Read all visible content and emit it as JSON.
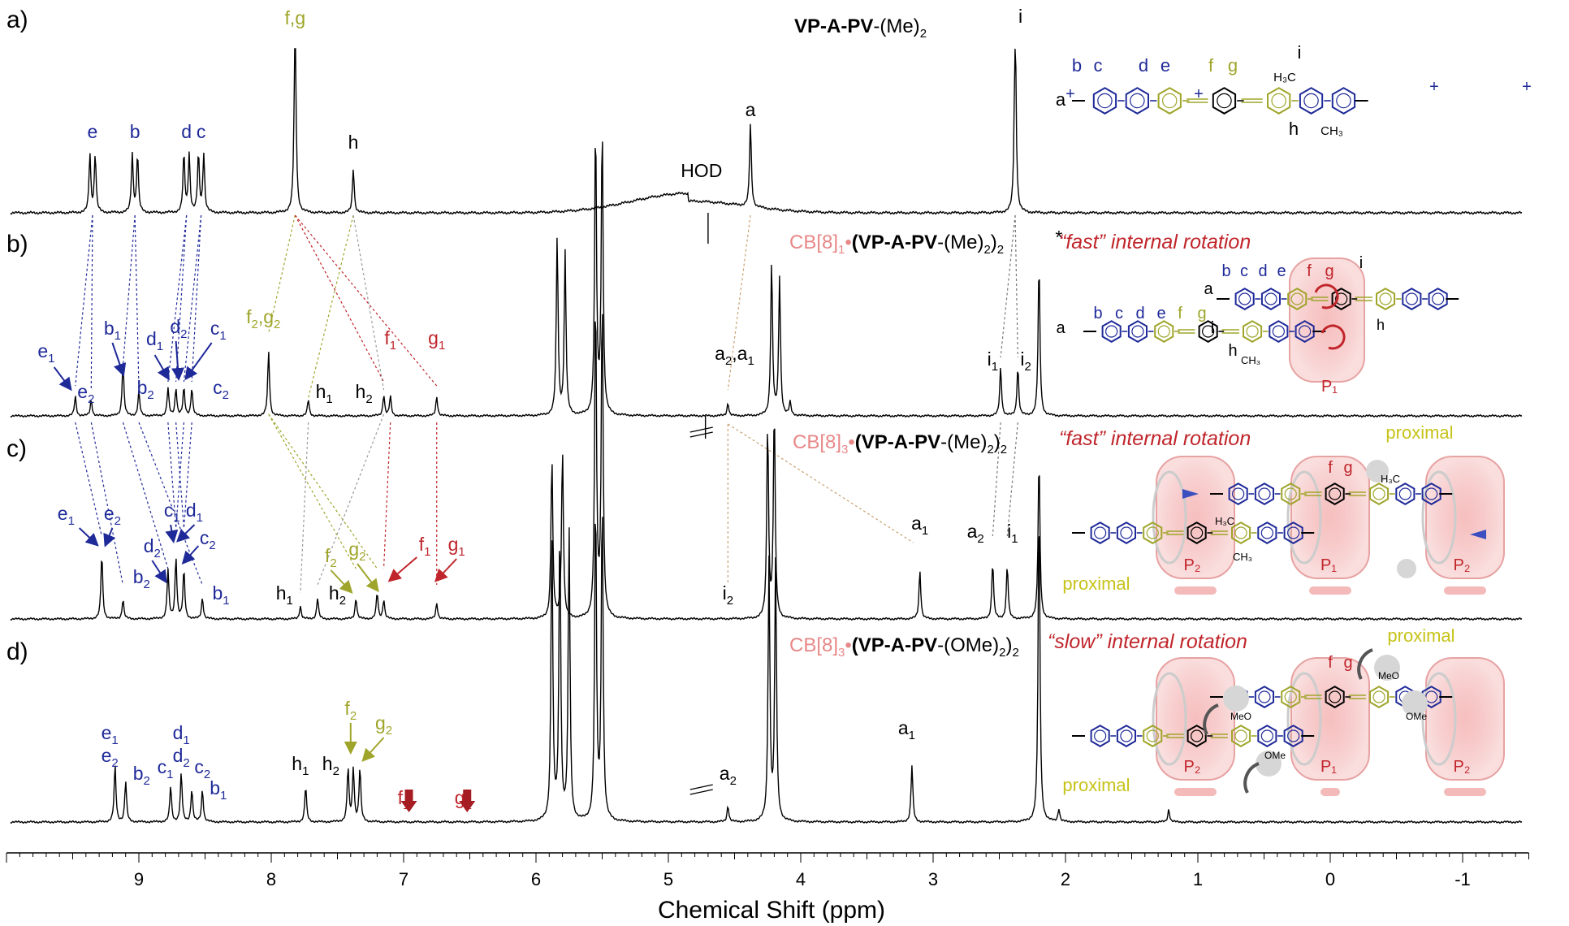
{
  "colors": {
    "blue": "#1f2a99",
    "olive": "#9fa52a",
    "red": "#c0252b",
    "pink": "#e88787",
    "proximal": "#c7c31a",
    "black": "#000000"
  },
  "xaxis": {
    "label": "Chemical Shift (ppm)",
    "ticks": [
      "9",
      "8",
      "7",
      "6",
      "5",
      "4",
      "3",
      "2",
      "1",
      "0",
      "-1"
    ],
    "range": [
      10.0,
      -1.5
    ]
  },
  "panels": [
    {
      "label": "a)",
      "title_bold": "VP-A-PV",
      "title_rest": "-(Me)",
      "title_sub": "2",
      "annotation": ""
    },
    {
      "label": "b)",
      "title_pre": "CB[8]",
      "title_pre_sub": "1",
      "title_bold": "(VP-A-PV",
      "title_rest": "-(Me)",
      "title_sub": "2",
      "title_tail": ")",
      "title_sub2": "2",
      "annotation": "“fast” internal rotation"
    },
    {
      "label": "c)",
      "title_pre": "CB[8]",
      "title_pre_sub": "3",
      "title_bold": "(VP-A-PV",
      "title_rest": "-(Me)",
      "title_sub": "2",
      "title_tail": ")",
      "title_sub2": "2",
      "annotation": "“fast” internal rotation"
    },
    {
      "label": "d)",
      "title_pre": "CB[8]",
      "title_pre_sub": "3",
      "title_bold": "(VP-A-PV",
      "title_rest": "-(OMe)",
      "title_sub": "2",
      "title_tail": ")",
      "title_sub2": "2",
      "annotation": "“slow” internal rotation"
    }
  ],
  "peak_labels": {
    "a": [
      {
        "t": "e",
        "c": "blue"
      },
      {
        "t": "b",
        "c": "blue"
      },
      {
        "t": "d",
        "c": "blue"
      },
      {
        "t": "c",
        "c": "blue"
      },
      {
        "t": "f,g",
        "c": "olive"
      },
      {
        "t": "h",
        "c": "black"
      },
      {
        "t": "HOD",
        "c": "black"
      },
      {
        "t": "a",
        "c": "black"
      },
      {
        "t": "i",
        "c": "black"
      }
    ],
    "b": [
      {
        "t": "e",
        "s": "1",
        "c": "blue"
      },
      {
        "t": "e",
        "s": "2",
        "c": "blue"
      },
      {
        "t": "b",
        "s": "1",
        "c": "blue"
      },
      {
        "t": "b",
        "s": "2",
        "c": "blue"
      },
      {
        "t": "d",
        "s": "1",
        "c": "blue"
      },
      {
        "t": "d",
        "s": "2",
        "c": "blue"
      },
      {
        "t": "c",
        "s": "1",
        "c": "blue"
      },
      {
        "t": "c",
        "s": "2",
        "c": "blue"
      },
      {
        "t": "f",
        "s": "2",
        "t2": ",g",
        "s2": "2",
        "c": "olive"
      },
      {
        "t": "h",
        "s": "1",
        "c": "black"
      },
      {
        "t": "h",
        "s": "2",
        "c": "black"
      },
      {
        "t": "f",
        "s": "1",
        "c": "red"
      },
      {
        "t": "g",
        "s": "1",
        "c": "red"
      },
      {
        "t": "a",
        "s": "2",
        "t2": ",a",
        "s2": "1",
        "c": "black"
      },
      {
        "t": "i",
        "s": "1",
        "c": "black"
      },
      {
        "t": "i",
        "s": "2",
        "c": "black"
      },
      {
        "t": "*",
        "c": "black"
      }
    ],
    "c": [
      {
        "t": "e",
        "s": "1",
        "c": "blue"
      },
      {
        "t": "e",
        "s": "2",
        "c": "blue"
      },
      {
        "t": "c",
        "s": "1",
        "c": "blue"
      },
      {
        "t": "d",
        "s": "1",
        "c": "blue"
      },
      {
        "t": "d",
        "s": "2",
        "c": "blue"
      },
      {
        "t": "c",
        "s": "2",
        "c": "blue"
      },
      {
        "t": "b",
        "s": "2",
        "c": "blue"
      },
      {
        "t": "b",
        "s": "1",
        "c": "blue"
      },
      {
        "t": "f",
        "s": "2",
        "c": "olive"
      },
      {
        "t": "g",
        "s": "2",
        "c": "olive"
      },
      {
        "t": "f",
        "s": "1",
        "c": "red"
      },
      {
        "t": "g",
        "s": "1",
        "c": "red"
      },
      {
        "t": "h",
        "s": "1",
        "c": "black"
      },
      {
        "t": "h",
        "s": "2",
        "c": "black"
      },
      {
        "t": "a",
        "s": "1",
        "c": "black"
      },
      {
        "t": "a",
        "s": "2",
        "c": "black"
      },
      {
        "t": "i",
        "s": "1",
        "c": "black"
      },
      {
        "t": "i",
        "s": "2",
        "c": "black"
      }
    ],
    "d": [
      {
        "t": "e",
        "s": "1",
        "c": "blue"
      },
      {
        "t": "e",
        "s": "2",
        "c": "blue"
      },
      {
        "t": "d",
        "s": "1",
        "c": "blue"
      },
      {
        "t": "d",
        "s": "2",
        "c": "blue"
      },
      {
        "t": "b",
        "s": "2",
        "c": "blue"
      },
      {
        "t": "c",
        "s": "1",
        "c": "blue"
      },
      {
        "t": "c",
        "s": "2",
        "c": "blue"
      },
      {
        "t": "b",
        "s": "1",
        "c": "blue"
      },
      {
        "t": "h",
        "s": "1",
        "c": "black"
      },
      {
        "t": "h",
        "s": "2",
        "c": "black"
      },
      {
        "t": "f",
        "s": "2",
        "c": "olive"
      },
      {
        "t": "g",
        "s": "2",
        "c": "olive"
      },
      {
        "t": "f",
        "s": "1",
        "c": "red"
      },
      {
        "t": "g",
        "s": "1",
        "c": "red"
      },
      {
        "t": "a",
        "s": "1",
        "c": "black"
      },
      {
        "t": "a",
        "s": "2",
        "c": "black"
      }
    ]
  },
  "structure_labels": {
    "a": "a",
    "b": "b",
    "c": "c",
    "d": "d",
    "e": "e",
    "f": "f",
    "g": "g",
    "h": "h",
    "i": "i",
    "h3c": "H₃C",
    "ch3": "CH₃",
    "meo": "MeO",
    "ome": "OMe",
    "p1": "P₁",
    "p2": "P₂",
    "proximal": "proximal"
  },
  "chart_data": {
    "type": "line",
    "title": "",
    "xlabel": "Chemical Shift (ppm)",
    "ylabel": "",
    "xlim": [
      10.0,
      -1.5
    ],
    "x_reversed": true,
    "grid": false,
    "series": [
      {
        "name": "VP-A-PV-(Me)2",
        "peaks": [
          {
            "ppm": 9.35,
            "h": 0.3,
            "doublet": true
          },
          {
            "ppm": 9.03,
            "h": 0.3,
            "doublet": true
          },
          {
            "ppm": 8.64,
            "h": 0.3,
            "doublet": true
          },
          {
            "ppm": 8.53,
            "h": 0.3,
            "doublet": true
          },
          {
            "ppm": 7.82,
            "h": 1.1
          },
          {
            "ppm": 7.38,
            "h": 0.23
          },
          {
            "ppm": 4.38,
            "h": 0.43
          },
          {
            "ppm": 2.38,
            "h": 1.05
          }
        ]
      },
      {
        "name": "CB[8]1•(VP-A-PV-(Me)2)2",
        "peaks": [
          {
            "ppm": 9.48,
            "h": 0.12
          },
          {
            "ppm": 9.36,
            "h": 0.1
          },
          {
            "ppm": 9.12,
            "h": 0.33
          },
          {
            "ppm": 9.0,
            "h": 0.15
          },
          {
            "ppm": 8.78,
            "h": 0.17
          },
          {
            "ppm": 8.72,
            "h": 0.17
          },
          {
            "ppm": 8.66,
            "h": 0.17
          },
          {
            "ppm": 8.6,
            "h": 0.17
          },
          {
            "ppm": 8.02,
            "h": 0.4
          },
          {
            "ppm": 7.72,
            "h": 0.1
          },
          {
            "ppm": 7.15,
            "h": 0.13
          },
          {
            "ppm": 7.1,
            "h": 0.12
          },
          {
            "ppm": 6.75,
            "h": 0.12
          },
          {
            "ppm": 5.84,
            "h": 1.1
          },
          {
            "ppm": 5.78,
            "h": 1.0
          },
          {
            "ppm": 5.55,
            "h": 1.8
          },
          {
            "ppm": 5.5,
            "h": 1.8
          },
          {
            "ppm": 4.55,
            "h": 0.08
          },
          {
            "ppm": 4.22,
            "h": 0.95
          },
          {
            "ppm": 4.16,
            "h": 0.85
          },
          {
            "ppm": 4.08,
            "h": 0.08
          },
          {
            "ppm": 2.49,
            "h": 0.3
          },
          {
            "ppm": 2.36,
            "h": 0.3
          },
          {
            "ppm": 2.2,
            "h": 0.95
          }
        ]
      },
      {
        "name": "CB[8]3•(VP-A-PV-(Me)2)2",
        "peaks": [
          {
            "ppm": 9.28,
            "h": 0.4
          },
          {
            "ppm": 9.12,
            "h": 0.12
          },
          {
            "ppm": 8.78,
            "h": 0.3
          },
          {
            "ppm": 8.72,
            "h": 0.38
          },
          {
            "ppm": 8.66,
            "h": 0.3
          },
          {
            "ppm": 8.52,
            "h": 0.13
          },
          {
            "ppm": 7.78,
            "h": 0.08
          },
          {
            "ppm": 7.65,
            "h": 0.13
          },
          {
            "ppm": 7.36,
            "h": 0.13
          },
          {
            "ppm": 7.2,
            "h": 0.16
          },
          {
            "ppm": 7.15,
            "h": 0.12
          },
          {
            "ppm": 6.75,
            "h": 0.1
          },
          {
            "ppm": 5.88,
            "h": 1.0
          },
          {
            "ppm": 5.8,
            "h": 1.05
          },
          {
            "ppm": 5.55,
            "h": 2.0
          },
          {
            "ppm": 5.5,
            "h": 2.0
          },
          {
            "ppm": 4.25,
            "h": 1.2
          },
          {
            "ppm": 4.2,
            "h": 1.3
          },
          {
            "ppm": 3.1,
            "h": 0.3
          },
          {
            "ppm": 2.55,
            "h": 0.35
          },
          {
            "ppm": 2.44,
            "h": 0.33
          },
          {
            "ppm": 2.2,
            "h": 1.0
          }
        ]
      },
      {
        "name": "CB[8]3•(VP-A-PV-(OMe)2)2",
        "peaks": [
          {
            "ppm": 9.18,
            "h": 0.35
          },
          {
            "ppm": 9.1,
            "h": 0.25
          },
          {
            "ppm": 8.76,
            "h": 0.22
          },
          {
            "ppm": 8.68,
            "h": 0.3
          },
          {
            "ppm": 8.6,
            "h": 0.2
          },
          {
            "ppm": 8.52,
            "h": 0.2
          },
          {
            "ppm": 7.74,
            "h": 0.22
          },
          {
            "ppm": 7.42,
            "h": 0.33
          },
          {
            "ppm": 7.38,
            "h": 0.33
          },
          {
            "ppm": 7.33,
            "h": 0.33
          },
          {
            "ppm": 5.88,
            "h": 1.8
          },
          {
            "ppm": 5.82,
            "h": 1.8
          },
          {
            "ppm": 5.75,
            "h": 1.8
          },
          {
            "ppm": 5.55,
            "h": 2.0
          },
          {
            "ppm": 5.5,
            "h": 2.0
          },
          {
            "ppm": 4.55,
            "h": 0.1
          },
          {
            "ppm": 4.24,
            "h": 1.6
          },
          {
            "ppm": 4.19,
            "h": 1.6
          },
          {
            "ppm": 3.16,
            "h": 0.35
          },
          {
            "ppm": 2.2,
            "h": 2.0
          },
          {
            "ppm": 2.05,
            "h": 0.08
          },
          {
            "ppm": 1.22,
            "h": 0.08
          }
        ]
      }
    ]
  }
}
